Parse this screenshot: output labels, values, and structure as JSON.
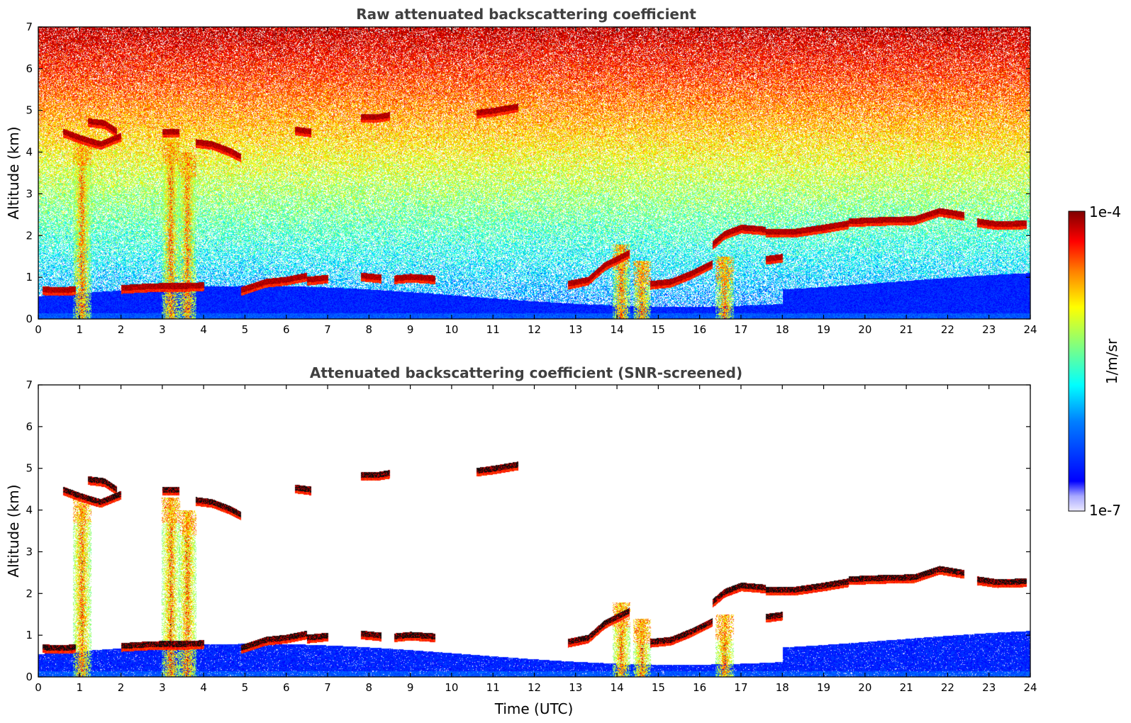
{
  "chart_data": [
    {
      "type": "heatmap",
      "title": "Raw attenuated backscattering coefficient",
      "xlabel": "",
      "ylabel": "Altitude (km)",
      "xlim": [
        0,
        24
      ],
      "ylim": [
        0,
        7
      ],
      "xticks": [
        "0",
        "1",
        "2",
        "3",
        "4",
        "5",
        "6",
        "7",
        "8",
        "9",
        "10",
        "11",
        "12",
        "13",
        "14",
        "15",
        "16",
        "17",
        "18",
        "19",
        "20",
        "21",
        "22",
        "23",
        "24"
      ],
      "yticks": [
        "0",
        "1",
        "2",
        "3",
        "4",
        "5",
        "6",
        "7"
      ],
      "screened": false,
      "features": {
        "cloud_layers": [
          {
            "t": [
              0.1,
              0.5,
              0.9
            ],
            "h": [
              0.72,
              0.7,
              0.72
            ]
          },
          {
            "t": [
              0.6,
              1.0,
              1.5,
              2.0
            ],
            "h": [
              4.5,
              4.35,
              4.2,
              4.4
            ]
          },
          {
            "t": [
              1.2,
              1.6,
              1.9
            ],
            "h": [
              4.75,
              4.7,
              4.5
            ]
          },
          {
            "t": [
              2.0,
              2.5,
              3.0,
              3.6,
              4.0
            ],
            "h": [
              0.75,
              0.78,
              0.8,
              0.8,
              0.82
            ]
          },
          {
            "t": [
              3.0,
              3.4
            ],
            "h": [
              4.5,
              4.5
            ]
          },
          {
            "t": [
              3.8,
              4.2,
              4.6,
              4.9
            ],
            "h": [
              4.25,
              4.2,
              4.05,
              3.9
            ]
          },
          {
            "t": [
              4.9,
              5.5,
              6.0,
              6.5
            ],
            "h": [
              0.7,
              0.9,
              0.95,
              1.05
            ]
          },
          {
            "t": [
              6.5,
              7.0
            ],
            "h": [
              0.95,
              1.0
            ]
          },
          {
            "t": [
              6.2,
              6.6
            ],
            "h": [
              4.55,
              4.5
            ]
          },
          {
            "t": [
              7.8,
              8.2,
              8.5
            ],
            "h": [
              4.85,
              4.85,
              4.9
            ]
          },
          {
            "t": [
              7.8,
              8.3
            ],
            "h": [
              1.05,
              1.0
            ]
          },
          {
            "t": [
              8.6,
              9.0,
              9.6
            ],
            "h": [
              0.98,
              1.02,
              0.98
            ]
          },
          {
            "t": [
              10.6,
              11.0,
              11.6
            ],
            "h": [
              4.95,
              5.0,
              5.1
            ]
          },
          {
            "t": [
              12.8,
              13.3,
              13.7,
              14.3
            ],
            "h": [
              0.85,
              0.95,
              1.3,
              1.6
            ]
          },
          {
            "t": [
              14.8,
              15.3,
              15.8,
              16.3
            ],
            "h": [
              0.85,
              0.9,
              1.1,
              1.35
            ]
          },
          {
            "t": [
              16.3,
              16.6,
              17.0,
              17.6
            ],
            "h": [
              1.8,
              2.05,
              2.2,
              2.15
            ]
          },
          {
            "t": [
              17.6,
              18.3,
              19.0,
              19.6
            ],
            "h": [
              2.1,
              2.1,
              2.2,
              2.3
            ]
          },
          {
            "t": [
              19.6,
              20.4,
              21.2,
              21.8,
              22.4
            ],
            "h": [
              2.35,
              2.38,
              2.4,
              2.6,
              2.5
            ]
          },
          {
            "t": [
              22.7,
              23.2,
              23.9
            ],
            "h": [
              2.35,
              2.28,
              2.3
            ]
          },
          {
            "t": [
              17.6,
              18.0
            ],
            "h": [
              1.45,
              1.5
            ]
          }
        ],
        "precip_shafts": [
          {
            "t": 1.05,
            "top": 4.3
          },
          {
            "t": 3.2,
            "top": 4.3
          },
          {
            "t": 3.6,
            "top": 4.0
          },
          {
            "t": 14.1,
            "top": 1.8
          },
          {
            "t": 14.6,
            "top": 1.4
          },
          {
            "t": 16.6,
            "top": 1.5
          }
        ]
      }
    },
    {
      "type": "heatmap",
      "title": "Attenuated backscattering coefficient (SNR-screened)",
      "xlabel": "Time (UTC)",
      "ylabel": "Altitude (km)",
      "xlim": [
        0,
        24
      ],
      "ylim": [
        0,
        7
      ],
      "xticks": [
        "0",
        "1",
        "2",
        "3",
        "4",
        "5",
        "6",
        "7",
        "8",
        "9",
        "10",
        "11",
        "12",
        "13",
        "14",
        "15",
        "16",
        "17",
        "18",
        "19",
        "20",
        "21",
        "22",
        "23",
        "24"
      ],
      "yticks": [
        "0",
        "1",
        "2",
        "3",
        "4",
        "5",
        "6",
        "7"
      ],
      "screened": true
    }
  ],
  "colorbar": {
    "max_label": "1e-4",
    "min_label": "1e-7",
    "unit_label": "1/m/sr",
    "scale": "log",
    "colormap": "jet"
  },
  "colors": {
    "jet_stops": [
      "#00007f",
      "#0000ff",
      "#0080ff",
      "#00ffff",
      "#80ff80",
      "#ffff00",
      "#ff8000",
      "#ff0000",
      "#7f0000"
    ],
    "low_end": "#e8e8ff",
    "title_color": "#404040"
  }
}
